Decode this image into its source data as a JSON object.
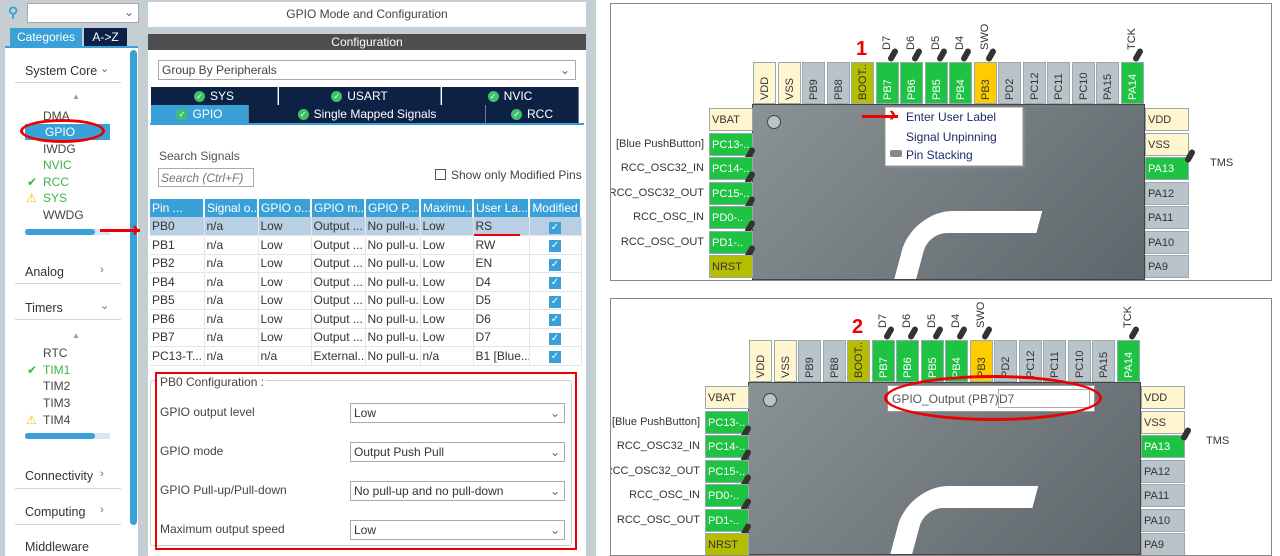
{
  "sidebar": {
    "search_placeholder": "",
    "tabs": [
      {
        "label": "Categories",
        "active": true
      },
      {
        "label": "A->Z",
        "active": false
      }
    ],
    "categories": [
      {
        "label": "System Core",
        "expanded": true,
        "items": [
          {
            "label": "DMA",
            "status": "none"
          },
          {
            "label": "GPIO",
            "status": "selected"
          },
          {
            "label": "IWDG",
            "status": "none"
          },
          {
            "label": "NVIC",
            "status": "configured"
          },
          {
            "label": "RCC",
            "status": "ok"
          },
          {
            "label": "SYS",
            "status": "warning"
          },
          {
            "label": "WWDG",
            "status": "none"
          }
        ]
      },
      {
        "label": "Analog",
        "expanded": false
      },
      {
        "label": "Timers",
        "expanded": true,
        "items": [
          {
            "label": "RTC",
            "status": "none"
          },
          {
            "label": "TIM1",
            "status": "ok"
          },
          {
            "label": "TIM2",
            "status": "none"
          },
          {
            "label": "TIM3",
            "status": "none"
          },
          {
            "label": "TIM4",
            "status": "warning"
          }
        ]
      },
      {
        "label": "Connectivity",
        "expanded": false
      },
      {
        "label": "Computing",
        "expanded": false
      },
      {
        "label": "Middleware",
        "expanded": false
      }
    ]
  },
  "main": {
    "title": "GPIO Mode and Configuration",
    "section": "Configuration",
    "group_by": "Group By Peripherals",
    "tabs_row1": [
      {
        "label": "SYS"
      },
      {
        "label": "USART"
      },
      {
        "label": "NVIC"
      }
    ],
    "tabs_row2": [
      {
        "label": "GPIO",
        "active": true
      },
      {
        "label": "Single Mapped Signals"
      },
      {
        "label": "RCC"
      }
    ],
    "search_label": "Search Signals",
    "search_placeholder": "Search (Ctrl+F)",
    "show_modified_label": "Show only Modified Pins",
    "show_modified_checked": false,
    "table": {
      "headers": [
        "Pin ...",
        "Signal o...",
        "GPIO o...",
        "GPIO m...",
        "GPIO P...",
        "Maximu...",
        "User La...",
        "Modified"
      ],
      "rows": [
        [
          "PB0",
          "n/a",
          "Low",
          "Output ...",
          "No pull-u...",
          "Low",
          "RS",
          true
        ],
        [
          "PB1",
          "n/a",
          "Low",
          "Output ...",
          "No pull-u...",
          "Low",
          "RW",
          true
        ],
        [
          "PB2",
          "n/a",
          "Low",
          "Output ...",
          "No pull-u...",
          "Low",
          "EN",
          true
        ],
        [
          "PB4",
          "n/a",
          "Low",
          "Output ...",
          "No pull-u...",
          "Low",
          "D4",
          true
        ],
        [
          "PB5",
          "n/a",
          "Low",
          "Output ...",
          "No pull-u...",
          "Low",
          "D5",
          true
        ],
        [
          "PB6",
          "n/a",
          "Low",
          "Output ...",
          "No pull-u...",
          "Low",
          "D6",
          true
        ],
        [
          "PB7",
          "n/a",
          "Low",
          "Output ...",
          "No pull-u...",
          "Low",
          "D7",
          true
        ],
        [
          "PC13-T...",
          "n/a",
          "n/a",
          "External...",
          "No pull-u...",
          "n/a",
          "B1 [Blue...",
          true
        ]
      ]
    },
    "config": {
      "title": "PB0 Configuration :",
      "fields": [
        {
          "label": "GPIO output level",
          "value": "Low"
        },
        {
          "label": "GPIO mode",
          "value": "Output Push Pull"
        },
        {
          "label": "GPIO Pull-up/Pull-down",
          "value": "No pull-up and no pull-down"
        },
        {
          "label": "Maximum output speed",
          "value": "Low"
        }
      ]
    }
  },
  "chip": {
    "top_pins": [
      {
        "label": "VDD",
        "type": "power"
      },
      {
        "label": "VSS",
        "type": "power"
      },
      {
        "label": "PB9",
        "type": "free"
      },
      {
        "label": "PB8",
        "type": "free"
      },
      {
        "label": "BOOT..",
        "type": "boot"
      },
      {
        "label": "PB7",
        "type": "gpio",
        "signal": "D7"
      },
      {
        "label": "PB6",
        "type": "gpio",
        "signal": "D6"
      },
      {
        "label": "PB5",
        "type": "gpio",
        "signal": "D5"
      },
      {
        "label": "PB4",
        "type": "gpio",
        "signal": "D4"
      },
      {
        "label": "PB3",
        "type": "partial",
        "signal": "SWO"
      },
      {
        "label": "PD2",
        "type": "free"
      },
      {
        "label": "PC12",
        "type": "free"
      },
      {
        "label": "PC11",
        "type": "free"
      },
      {
        "label": "PC10",
        "type": "free"
      },
      {
        "label": "PA15",
        "type": "free"
      },
      {
        "label": "PA14",
        "type": "gpio",
        "signal": "TCK"
      }
    ],
    "left_pins": [
      {
        "label": "VBAT",
        "type": "power"
      },
      {
        "label": "PC13-..",
        "type": "gpio",
        "signal": "[Blue PushButton]"
      },
      {
        "label": "PC14-..",
        "type": "gpio",
        "signal": "RCC_OSC32_IN"
      },
      {
        "label": "PC15-..",
        "type": "gpio",
        "signal": "RCC_OSC32_OUT"
      },
      {
        "label": "PD0-..",
        "type": "gpio",
        "signal": "RCC_OSC_IN"
      },
      {
        "label": "PD1-..",
        "type": "gpio",
        "signal": "RCC_OSC_OUT"
      },
      {
        "label": "NRST",
        "type": "boot"
      }
    ],
    "right_pins": [
      {
        "label": "VDD",
        "type": "power"
      },
      {
        "label": "VSS",
        "type": "power"
      },
      {
        "label": "PA13",
        "type": "gpio",
        "signal": "TMS"
      },
      {
        "label": "PA12",
        "type": "free"
      },
      {
        "label": "PA11",
        "type": "free"
      },
      {
        "label": "PA10",
        "type": "free"
      },
      {
        "label": "PA9",
        "type": "free"
      }
    ],
    "colors": {
      "power": "#fff6cf",
      "free": "#b9c3c9",
      "boot": "#b5bd00",
      "gpio": "#1fc343",
      "partial": "#ffcc00"
    }
  },
  "context_menu": {
    "items": [
      {
        "label": "Enter User Label"
      },
      {
        "label": "Signal Unpinning"
      },
      {
        "label": "Pin Stacking"
      }
    ]
  },
  "label_editor": {
    "label": "GPIO_Output (PB7)",
    "value": "D7"
  },
  "annotations": {
    "step1": "1",
    "step2": "2",
    "color": "#ee0000"
  }
}
